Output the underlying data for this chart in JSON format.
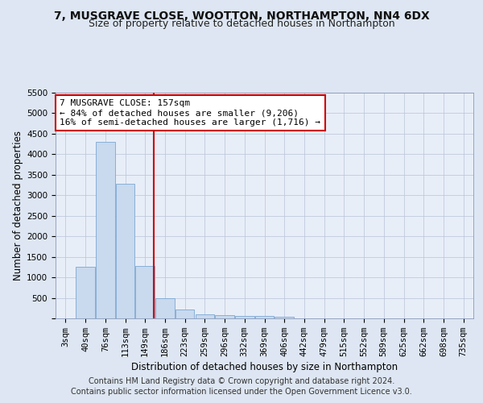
{
  "title": "7, MUSGRAVE CLOSE, WOOTTON, NORTHAMPTON, NN4 6DX",
  "subtitle": "Size of property relative to detached houses in Northampton",
  "xlabel": "Distribution of detached houses by size in Northampton",
  "ylabel": "Number of detached properties",
  "categories": [
    "3sqm",
    "40sqm",
    "76sqm",
    "113sqm",
    "149sqm",
    "186sqm",
    "223sqm",
    "259sqm",
    "296sqm",
    "332sqm",
    "369sqm",
    "406sqm",
    "442sqm",
    "479sqm",
    "515sqm",
    "552sqm",
    "589sqm",
    "625sqm",
    "662sqm",
    "698sqm",
    "735sqm"
  ],
  "values": [
    0,
    1260,
    4300,
    3280,
    1280,
    490,
    215,
    95,
    70,
    55,
    50,
    45,
    0,
    0,
    0,
    0,
    0,
    0,
    0,
    0,
    0
  ],
  "bar_color": "#c9d9ee",
  "bar_edge_color": "#7aa8d2",
  "vline_color": "#cc0000",
  "vline_x": 4.45,
  "annotation_line1": "7 MUSGRAVE CLOSE: 157sqm",
  "annotation_line2": "← 84% of detached houses are smaller (9,206)",
  "annotation_line3": "16% of semi-detached houses are larger (1,716) →",
  "annotation_box_color": "#ffffff",
  "annotation_box_edge": "#cc0000",
  "ylim": [
    0,
    5500
  ],
  "yticks": [
    0,
    500,
    1000,
    1500,
    2000,
    2500,
    3000,
    3500,
    4000,
    4500,
    5000,
    5500
  ],
  "bg_color": "#dde6f2",
  "plot_bg_color": "#e8eef8",
  "grid_color": "#b8c4d8",
  "footer_line1": "Contains HM Land Registry data © Crown copyright and database right 2024.",
  "footer_line2": "Contains public sector information licensed under the Open Government Licence v3.0.",
  "title_fontsize": 10,
  "subtitle_fontsize": 9,
  "axis_label_fontsize": 8.5,
  "tick_fontsize": 7.5,
  "annotation_fontsize": 8,
  "footer_fontsize": 7
}
